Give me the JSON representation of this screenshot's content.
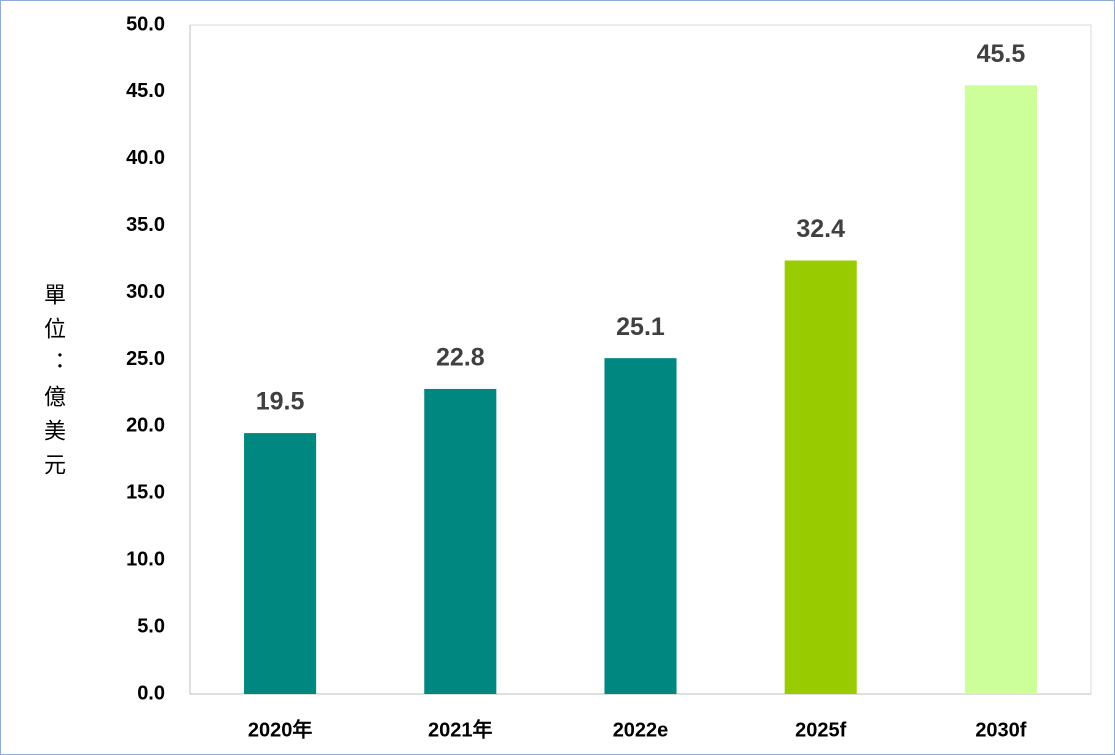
{
  "chart_data": {
    "type": "bar",
    "y_label": "單位：億美元",
    "categories": [
      "2020年",
      "2021年",
      "2022e",
      "2025f",
      "2030f"
    ],
    "values": [
      19.5,
      22.8,
      25.1,
      32.4,
      45.5
    ],
    "colors": [
      "#00877f",
      "#00877f",
      "#00877f",
      "#99cc00",
      "#ccff99"
    ],
    "ylim": [
      0,
      50
    ],
    "yticks": [
      {
        "value": 0,
        "label": "0.0"
      },
      {
        "value": 5,
        "label": "5.0"
      },
      {
        "value": 10,
        "label": "10.0"
      },
      {
        "value": 15,
        "label": "15.0"
      },
      {
        "value": 20,
        "label": "20.0"
      },
      {
        "value": 25,
        "label": "25.0"
      },
      {
        "value": 30,
        "label": "30.0"
      },
      {
        "value": 35,
        "label": "35.0"
      },
      {
        "value": 40,
        "label": "40.0"
      },
      {
        "value": 45,
        "label": "45.0"
      },
      {
        "value": 50,
        "label": "50.0"
      }
    ],
    "grid": false
  }
}
